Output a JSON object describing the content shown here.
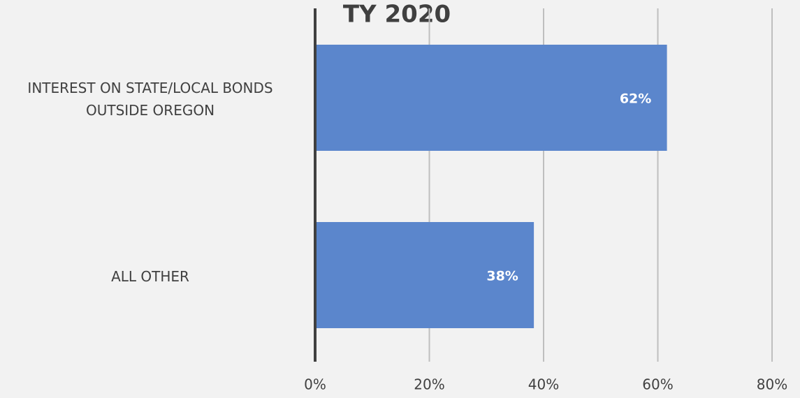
{
  "chart_data": {
    "type": "bar",
    "orientation": "horizontal",
    "title": "TY 2020",
    "categories": [
      "INTEREST ON STATE/LOCAL BONDS OUTSIDE OREGON",
      "ALL OTHER"
    ],
    "values": [
      61.6,
      38.3
    ],
    "value_labels": [
      "62%",
      "38%"
    ],
    "color": "#5b86cc",
    "xlim": [
      0,
      80
    ],
    "xticks": [
      {
        "value": 0,
        "label": "0%"
      },
      {
        "value": 20,
        "label": "20%"
      },
      {
        "value": 40,
        "label": "40%"
      },
      {
        "value": 60,
        "label": "60%"
      },
      {
        "value": 80,
        "label": "80%"
      }
    ],
    "grid": true
  }
}
